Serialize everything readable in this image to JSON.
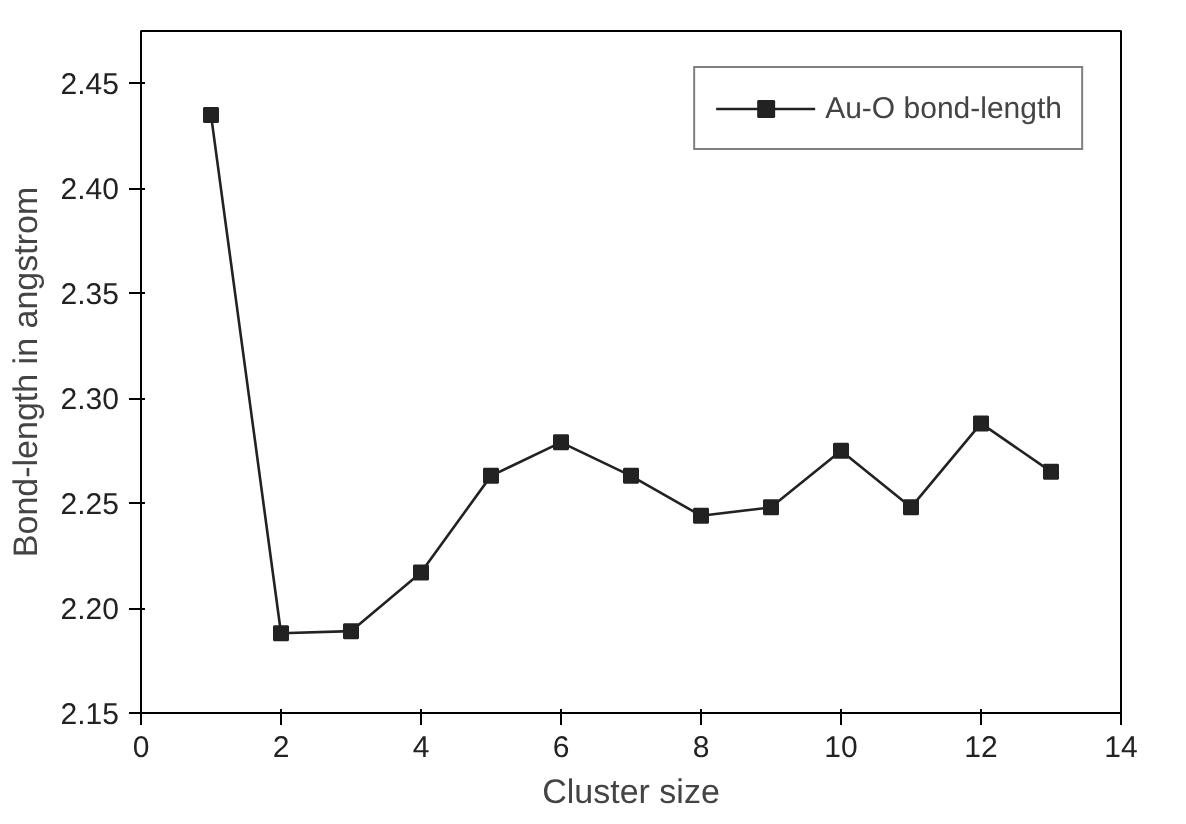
{
  "chart_data": {
    "type": "line",
    "xlabel": "Cluster size",
    "ylabel": "Bond-length in angstrom",
    "x": [
      1,
      2,
      3,
      4,
      5,
      6,
      7,
      8,
      9,
      10,
      11,
      12,
      13
    ],
    "series": [
      {
        "name": "Au-O bond-length",
        "color": "#222222",
        "values": [
          2.435,
          2.188,
          2.189,
          2.217,
          2.263,
          2.279,
          2.263,
          2.244,
          2.248,
          2.275,
          2.248,
          2.288,
          2.265
        ]
      }
    ],
    "xlim": [
      0,
      14
    ],
    "ylim": [
      2.15,
      2.475
    ],
    "xticks": [
      0,
      2,
      4,
      6,
      8,
      10,
      12,
      14
    ],
    "yticks": [
      {
        "value": 2.15,
        "label": "2.15"
      },
      {
        "value": 2.2,
        "label": "2.20"
      },
      {
        "value": 2.25,
        "label": "2.25"
      },
      {
        "value": 2.3,
        "label": "2.30"
      },
      {
        "value": 2.35,
        "label": "2.35"
      },
      {
        "value": 2.4,
        "label": "2.40"
      },
      {
        "value": 2.45,
        "label": "2.45"
      }
    ],
    "grid": false,
    "legend": "top right",
    "marker": "square",
    "line_style": "solid"
  }
}
